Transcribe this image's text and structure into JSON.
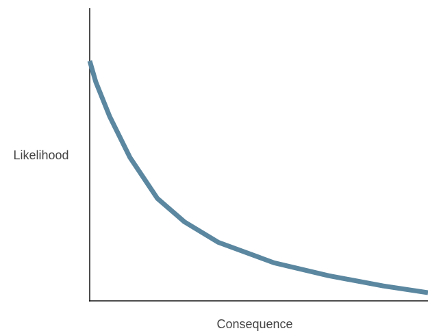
{
  "chart_data": {
    "type": "line",
    "xlabel": "Consequence",
    "ylabel": "Likelihood",
    "x": [
      0,
      1.8,
      5.9,
      11.9,
      20,
      28,
      38,
      54.5,
      70.6,
      86.8,
      100
    ],
    "values": [
      82,
      74.8,
      63,
      49,
      35,
      27,
      20,
      13,
      8.6,
      5.1,
      2.8
    ],
    "color": "#5b87a0",
    "xlim": [
      0,
      100
    ],
    "ylim": [
      0,
      100
    ]
  }
}
